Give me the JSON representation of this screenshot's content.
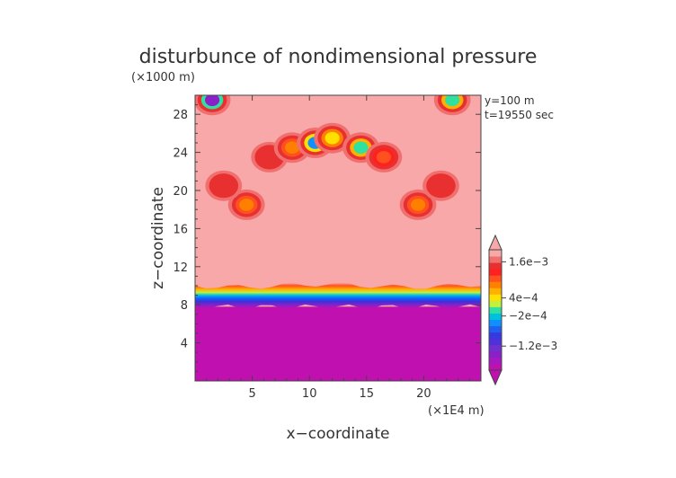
{
  "chart_data": {
    "type": "heatmap",
    "title": "disturbunce of nondimensional pressure",
    "xlabel": "x−coordinate",
    "ylabel": "z−coordinate",
    "x_unit": "(×1E4 m)",
    "y_unit": "(×1000 m)",
    "annotations": [
      "y=100  m",
      "t=19550 sec"
    ],
    "xlim": [
      0,
      25
    ],
    "ylim": [
      0,
      30
    ],
    "x_ticks": [
      5,
      10,
      15,
      20
    ],
    "y_ticks": [
      4,
      8,
      12,
      16,
      20,
      24,
      28
    ],
    "x_tick_labels": [
      "5",
      "10",
      "15",
      "20"
    ],
    "y_tick_labels": [
      "4",
      "8",
      "12",
      "16",
      "20",
      "24",
      "28"
    ],
    "colorbar": {
      "tick_labels": [
        "1.6e−3",
        "4e−4",
        "−2e−4",
        "−1.2e−3"
      ],
      "tick_values": [
        0.0016,
        0.0004,
        -0.0002,
        -0.0012
      ],
      "range": [
        -0.002,
        0.002
      ],
      "colors": [
        "#c010b0",
        "#a818c0",
        "#8c20c8",
        "#7030d0",
        "#5030d8",
        "#3838e0",
        "#2060f0",
        "#1090ff",
        "#00c0e0",
        "#30e0a0",
        "#c0f040",
        "#ffe000",
        "#ffb000",
        "#ff8000",
        "#ff5020",
        "#ff2020",
        "#e83030",
        "#f07070",
        "#f8a8a8"
      ]
    },
    "background_level": 0.002,
    "layers": [
      {
        "region": "lower",
        "z_range": [
          0,
          7.8
        ],
        "value": -0.002
      },
      {
        "region": "transition",
        "z_range": [
          7.8,
          10
        ],
        "value_range": [
          -0.002,
          0.002
        ]
      },
      {
        "region": "upper",
        "z_range": [
          10,
          30
        ],
        "value": 0.002
      }
    ],
    "features": [
      {
        "x": 4.5,
        "z": 18.5,
        "value": 0.0008
      },
      {
        "x": 2.5,
        "z": 20.5,
        "value": 0.0016
      },
      {
        "x": 6.5,
        "z": 23.5,
        "value": 0.0016
      },
      {
        "x": 8.5,
        "z": 24.5,
        "value": 0.0008
      },
      {
        "x": 10.5,
        "z": 25.0,
        "value": -0.0004
      },
      {
        "x": 12.0,
        "z": 25.5,
        "value": 0.0004
      },
      {
        "x": 14.5,
        "z": 24.5,
        "value": 0.0
      },
      {
        "x": 16.5,
        "z": 23.5,
        "value": 0.0012
      },
      {
        "x": 19.5,
        "z": 18.5,
        "value": 0.0008
      },
      {
        "x": 21.5,
        "z": 20.5,
        "value": 0.0016
      },
      {
        "x": 1.5,
        "z": 29.5,
        "value": -0.0016
      },
      {
        "x": 22.5,
        "z": 29.5,
        "value": 0.0
      }
    ]
  }
}
